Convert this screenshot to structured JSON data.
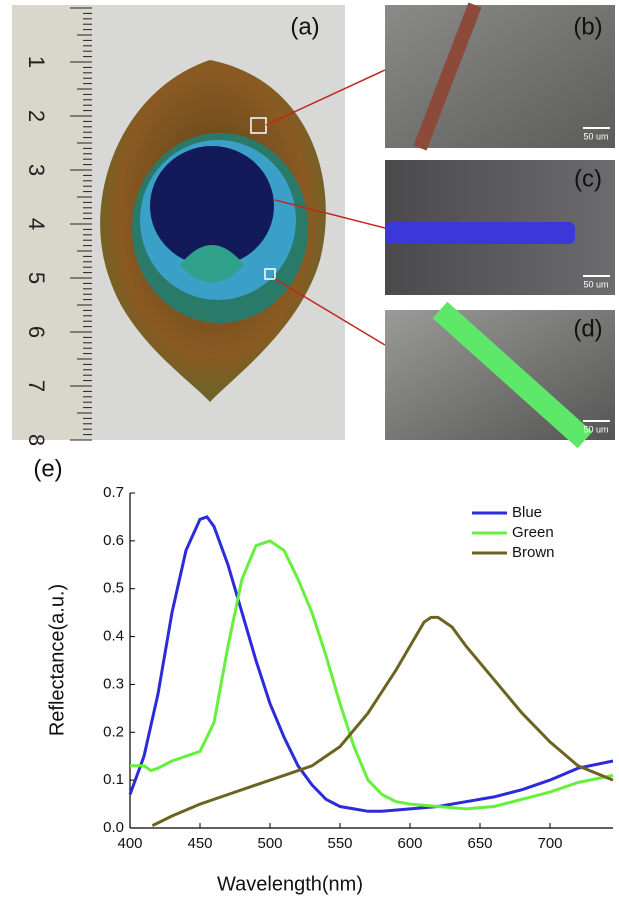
{
  "figure": {
    "panel_labels": [
      "(a)",
      "(b)",
      "(c)",
      "(d)",
      "(e)"
    ],
    "ruler_labels": [
      "1",
      "2",
      "3",
      "4",
      "5",
      "6",
      "7",
      "8"
    ],
    "scale_bars": [
      "50 um",
      "50 um",
      "50 um"
    ]
  },
  "chart_data": {
    "type": "line",
    "x_label": "Wavelength(nm)",
    "y_label": "Reflectance(a.u.)",
    "xlim": [
      400,
      745
    ],
    "xticks": [
      400,
      450,
      500,
      550,
      600,
      650,
      700
    ],
    "ylim": [
      0,
      0.7
    ],
    "yticks": [
      {
        "value": 0,
        "label": "0.0"
      },
      0.1,
      0.2,
      0.3,
      0.4,
      0.5,
      0.6,
      0.7
    ],
    "legend": "upper right",
    "series": [
      {
        "name": "Blue",
        "color": "#2b2bdc",
        "x": [
          400,
          410,
          420,
          430,
          440,
          450,
          455,
          460,
          470,
          480,
          490,
          500,
          510,
          520,
          530,
          540,
          550,
          560,
          570,
          580,
          600,
          620,
          640,
          660,
          680,
          700,
          720,
          745
        ],
        "values": [
          0.07,
          0.15,
          0.28,
          0.45,
          0.58,
          0.645,
          0.65,
          0.63,
          0.55,
          0.45,
          0.35,
          0.26,
          0.19,
          0.13,
          0.09,
          0.06,
          0.045,
          0.04,
          0.035,
          0.035,
          0.04,
          0.045,
          0.055,
          0.065,
          0.08,
          0.1,
          0.125,
          0.14
        ]
      },
      {
        "name": "Green",
        "color": "#66f03c",
        "x": [
          400,
          410,
          415,
          420,
          430,
          440,
          450,
          460,
          470,
          480,
          490,
          500,
          510,
          520,
          530,
          540,
          550,
          560,
          570,
          580,
          590,
          600,
          620,
          640,
          660,
          680,
          700,
          720,
          745
        ],
        "values": [
          0.13,
          0.13,
          0.12,
          0.125,
          0.14,
          0.15,
          0.16,
          0.22,
          0.38,
          0.52,
          0.59,
          0.6,
          0.58,
          0.52,
          0.45,
          0.36,
          0.26,
          0.17,
          0.1,
          0.07,
          0.055,
          0.05,
          0.045,
          0.04,
          0.045,
          0.06,
          0.075,
          0.095,
          0.11
        ]
      },
      {
        "name": "Brown",
        "color": "#6b6420",
        "x": [
          416,
          430,
          450,
          470,
          490,
          510,
          530,
          550,
          570,
          590,
          600,
          610,
          615,
          620,
          630,
          640,
          660,
          680,
          700,
          720,
          745
        ],
        "values": [
          0.005,
          0.025,
          0.05,
          0.07,
          0.09,
          0.11,
          0.13,
          0.17,
          0.24,
          0.33,
          0.38,
          0.43,
          0.44,
          0.44,
          0.42,
          0.38,
          0.31,
          0.24,
          0.18,
          0.13,
          0.1
        ]
      }
    ]
  }
}
